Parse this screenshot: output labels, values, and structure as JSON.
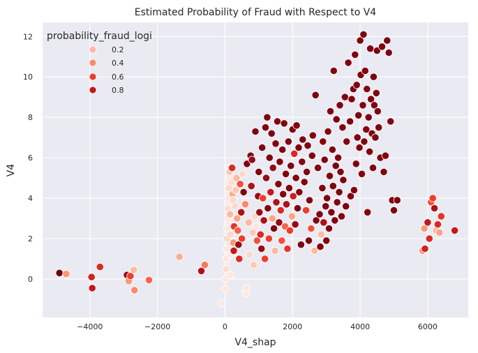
{
  "chart_data": {
    "type": "scatter",
    "title": "Estimated Probability of Fraud with Respect to V4",
    "xlabel": "V4_shap",
    "ylabel": "V4",
    "xlim": [
      -5400,
      7200
    ],
    "ylim": [
      -1.9,
      12.7
    ],
    "xticks": [
      -4000,
      -2000,
      0,
      2000,
      4000,
      6000
    ],
    "xtick_labels": [
      "−4000",
      "−2000",
      "0",
      "2000",
      "4000",
      "6000"
    ],
    "yticks": [
      0,
      2,
      4,
      6,
      8,
      10,
      12
    ],
    "ytick_labels": [
      "0",
      "2",
      "4",
      "6",
      "8",
      "10",
      "12"
    ],
    "grid": true,
    "background": "#eaeaf2",
    "hue": "probability_fraud_logi",
    "legend": {
      "title": "probability_fraud_logi",
      "placement": "top-left",
      "entries": [
        {
          "label": "0.2",
          "color": "#fcbba1"
        },
        {
          "label": "0.4",
          "color": "#fc8a6a"
        },
        {
          "label": "0.6",
          "color": "#ef3c2c"
        },
        {
          "label": "0.8",
          "color": "#c5171c"
        }
      ]
    },
    "colormap": [
      "#fff5f0",
      "#fcbba1",
      "#fc8a6a",
      "#ef3c2c",
      "#c5171c",
      "#67000d"
    ],
    "points": [
      [
        -4900,
        0.3,
        0.98
      ],
      [
        -4700,
        0.25,
        0.35
      ],
      [
        -3950,
        0.1,
        0.75
      ],
      [
        -3930,
        -0.45,
        0.8
      ],
      [
        -3700,
        0.6,
        0.7
      ],
      [
        -2900,
        0.2,
        0.9
      ],
      [
        -2850,
        -0.1,
        0.35
      ],
      [
        -2800,
        0.15,
        0.6
      ],
      [
        -2700,
        0.45,
        0.2
      ],
      [
        -2680,
        -0.55,
        0.4
      ],
      [
        -2250,
        -0.05,
        0.5
      ],
      [
        -1350,
        1.1,
        0.25
      ],
      [
        -700,
        0.4,
        0.85
      ],
      [
        -600,
        0.7,
        0.45
      ],
      [
        -100,
        -1.2,
        0.05
      ],
      [
        0,
        -0.5,
        0.05
      ],
      [
        20,
        0.0,
        0.05
      ],
      [
        30,
        0.5,
        0.08
      ],
      [
        40,
        1.0,
        0.05
      ],
      [
        50,
        1.5,
        0.05
      ],
      [
        60,
        2.0,
        0.1
      ],
      [
        70,
        2.5,
        0.05
      ],
      [
        80,
        3.0,
        0.05
      ],
      [
        90,
        3.5,
        0.08
      ],
      [
        100,
        4.0,
        0.05
      ],
      [
        110,
        4.5,
        0.1
      ],
      [
        120,
        5.0,
        0.05
      ],
      [
        130,
        5.5,
        0.05
      ],
      [
        140,
        5.3,
        0.15
      ],
      [
        150,
        3.2,
        0.2
      ],
      [
        160,
        2.2,
        0.1
      ],
      [
        170,
        1.2,
        0.05
      ],
      [
        180,
        0.2,
        0.05
      ],
      [
        200,
        4.8,
        0.08
      ],
      [
        210,
        5.5,
        0.7
      ],
      [
        220,
        4.2,
        0.25
      ],
      [
        230,
        3.9,
        0.1
      ],
      [
        240,
        2.8,
        0.05
      ],
      [
        250,
        1.8,
        0.35
      ],
      [
        260,
        1.4,
        0.8
      ],
      [
        270,
        2.6,
        0.65
      ],
      [
        300,
        3.6,
        0.1
      ],
      [
        320,
        4.4,
        0.15
      ],
      [
        340,
        5.0,
        0.2
      ],
      [
        360,
        3.0,
        0.3
      ],
      [
        380,
        2.4,
        0.5
      ],
      [
        400,
        1.7,
        0.9
      ],
      [
        420,
        1.0,
        0.7
      ],
      [
        450,
        4.7,
        0.55
      ],
      [
        480,
        3.3,
        0.85
      ],
      [
        500,
        2.0,
        0.6
      ],
      [
        520,
        5.2,
        0.1
      ],
      [
        550,
        4.3,
        0.95
      ],
      [
        600,
        3.7,
        0.4
      ],
      [
        620,
        -0.7,
        0.05
      ],
      [
        640,
        -0.45,
        0.05
      ],
      [
        650,
        5.7,
        0.95
      ],
      [
        700,
        2.8,
        0.2
      ],
      [
        720,
        1.2,
        0.1
      ],
      [
        760,
        6.1,
        0.95
      ],
      [
        780,
        4.6,
        0.85
      ],
      [
        800,
        5.9,
        0.9
      ],
      [
        820,
        2.3,
        0.15
      ],
      [
        850,
        0.7,
        0.15
      ],
      [
        880,
        3.1,
        0.1
      ],
      [
        900,
        7.3,
        0.95
      ],
      [
        920,
        2.6,
        0.05
      ],
      [
        950,
        1.9,
        0.55
      ],
      [
        980,
        4.1,
        0.9
      ],
      [
        1000,
        5.3,
        0.95
      ],
      [
        1020,
        3.3,
        0.9
      ],
      [
        1050,
        2.2,
        0.7
      ],
      [
        1080,
        1.5,
        0.9
      ],
      [
        1100,
        6.5,
        0.95
      ],
      [
        1120,
        4.0,
        0.6
      ],
      [
        1150,
        2.9,
        0.85
      ],
      [
        1180,
        1.0,
        0.6
      ],
      [
        1200,
        7.5,
        0.95
      ],
      [
        1220,
        5.0,
        0.9
      ],
      [
        1250,
        8.0,
        0.95
      ],
      [
        1270,
        3.5,
        0.95
      ],
      [
        1300,
        2.0,
        0.6
      ],
      [
        1320,
        6.0,
        0.95
      ],
      [
        1350,
        4.3,
        0.8
      ],
      [
        1380,
        7.2,
        0.95
      ],
      [
        1400,
        3.0,
        0.3
      ],
      [
        1420,
        5.5,
        0.9
      ],
      [
        1450,
        2.5,
        0.95
      ],
      [
        1480,
        1.4,
        0.2
      ],
      [
        1500,
        6.7,
        0.95
      ],
      [
        1520,
        3.8,
        0.85
      ],
      [
        1550,
        7.8,
        0.95
      ],
      [
        1580,
        4.7,
        0.95
      ],
      [
        1600,
        2.8,
        0.9
      ],
      [
        1620,
        5.8,
        0.95
      ],
      [
        1650,
        3.4,
        0.7
      ],
      [
        1680,
        1.9,
        0.55
      ],
      [
        1700,
        6.4,
        0.95
      ],
      [
        1720,
        4.2,
        0.95
      ],
      [
        1750,
        7.7,
        0.95
      ],
      [
        1780,
        2.6,
        0.5
      ],
      [
        1800,
        5.2,
        0.95
      ],
      [
        1820,
        3.7,
        0.85
      ],
      [
        1850,
        1.5,
        0.65
      ],
      [
        1880,
        6.8,
        0.95
      ],
      [
        1900,
        4.5,
        0.95
      ],
      [
        1920,
        2.4,
        0.6
      ],
      [
        1950,
        5.6,
        0.95
      ],
      [
        1980,
        3.1,
        0.3
      ],
      [
        2000,
        7.4,
        0.95
      ],
      [
        2020,
        4.1,
        0.75
      ],
      [
        2050,
        6.2,
        0.7
      ],
      [
        2080,
        2.7,
        0.9
      ],
      [
        2100,
        5.0,
        0.95
      ],
      [
        2120,
        7.6,
        0.95
      ],
      [
        2150,
        3.5,
        0.95
      ],
      [
        2180,
        6.5,
        0.95
      ],
      [
        2200,
        4.3,
        0.95
      ],
      [
        2250,
        1.7,
        0.95
      ],
      [
        2280,
        5.8,
        0.95
      ],
      [
        2300,
        6.9,
        0.95
      ],
      [
        2350,
        4.8,
        0.95
      ],
      [
        2400,
        3.4,
        0.6
      ],
      [
        2420,
        5.3,
        0.95
      ],
      [
        2450,
        6.6,
        0.95
      ],
      [
        2480,
        1.9,
        0.95
      ],
      [
        2500,
        3.9,
        0.95
      ],
      [
        2550,
        2.5,
        0.55
      ],
      [
        2580,
        6.1,
        0.95
      ],
      [
        2600,
        7.1,
        0.95
      ],
      [
        2650,
        1.4,
        0.2
      ],
      [
        2680,
        9.1,
        0.95
      ],
      [
        2700,
        2.9,
        0.95
      ],
      [
        2750,
        5.5,
        0.95
      ],
      [
        2800,
        3.2,
        0.95
      ],
      [
        2820,
        1.6,
        0.95
      ],
      [
        2850,
        2.2,
        0.2
      ],
      [
        2880,
        4.5,
        0.95
      ],
      [
        2900,
        6.8,
        0.95
      ],
      [
        2920,
        2.8,
        0.85
      ],
      [
        2950,
        5.9,
        0.95
      ],
      [
        2980,
        3.6,
        0.95
      ],
      [
        3000,
        1.9,
        0.95
      ],
      [
        3020,
        4.0,
        0.95
      ],
      [
        3050,
        7.3,
        0.95
      ],
      [
        3080,
        2.5,
        0.95
      ],
      [
        3100,
        5.1,
        0.95
      ],
      [
        3120,
        8.3,
        0.95
      ],
      [
        3150,
        3.3,
        0.95
      ],
      [
        3180,
        6.4,
        0.95
      ],
      [
        3200,
        4.6,
        0.95
      ],
      [
        3220,
        10.3,
        0.95
      ],
      [
        3250,
        2.9,
        0.95
      ],
      [
        3280,
        5.6,
        0.95
      ],
      [
        3300,
        7.9,
        0.95
      ],
      [
        3320,
        3.8,
        0.95
      ],
      [
        3350,
        6.0,
        0.95
      ],
      [
        3380,
        4.3,
        0.95
      ],
      [
        3400,
        8.6,
        0.95
      ],
      [
        3420,
        5.3,
        0.95
      ],
      [
        3450,
        3.1,
        0.95
      ],
      [
        3480,
        7.5,
        0.95
      ],
      [
        3500,
        4.9,
        0.95
      ],
      [
        3550,
        9.0,
        0.95
      ],
      [
        3580,
        3.6,
        0.95
      ],
      [
        3600,
        6.8,
        0.95
      ],
      [
        3650,
        10.7,
        0.95
      ],
      [
        3700,
        7.8,
        0.95
      ],
      [
        3720,
        4.1,
        0.95
      ],
      [
        3750,
        8.9,
        0.95
      ],
      [
        3800,
        9.4,
        0.95
      ],
      [
        3820,
        4.4,
        0.95
      ],
      [
        3850,
        11.1,
        0.95
      ],
      [
        3880,
        5.7,
        0.95
      ],
      [
        3900,
        9.6,
        0.95
      ],
      [
        3920,
        7.0,
        0.95
      ],
      [
        3950,
        8.1,
        0.95
      ],
      [
        3980,
        6.5,
        0.95
      ],
      [
        4000,
        11.8,
        0.95
      ],
      [
        4020,
        10.1,
        0.95
      ],
      [
        4050,
        5.2,
        0.95
      ],
      [
        4080,
        8.6,
        0.95
      ],
      [
        4100,
        12.1,
        0.95
      ],
      [
        4120,
        6.8,
        0.95
      ],
      [
        4150,
        10.3,
        0.95
      ],
      [
        4180,
        7.4,
        0.95
      ],
      [
        4200,
        9.4,
        0.95
      ],
      [
        4220,
        3.3,
        0.95
      ],
      [
        4250,
        8.0,
        0.95
      ],
      [
        4280,
        6.3,
        0.95
      ],
      [
        4300,
        11.4,
        0.95
      ],
      [
        4320,
        8.9,
        0.95
      ],
      [
        4350,
        7.2,
        0.95
      ],
      [
        4380,
        5.5,
        0.95
      ],
      [
        4400,
        10.0,
        0.95
      ],
      [
        4420,
        8.6,
        0.95
      ],
      [
        4450,
        7.0,
        0.95
      ],
      [
        4480,
        9.2,
        0.95
      ],
      [
        4500,
        11.3,
        0.95
      ],
      [
        4520,
        8.3,
        0.95
      ],
      [
        4550,
        7.5,
        0.95
      ],
      [
        4600,
        6.0,
        0.95
      ],
      [
        4650,
        11.5,
        0.95
      ],
      [
        4700,
        5.3,
        0.95
      ],
      [
        4750,
        6.1,
        0.95
      ],
      [
        4800,
        11.8,
        0.95
      ],
      [
        4850,
        11.2,
        0.95
      ],
      [
        4900,
        7.8,
        0.95
      ],
      [
        4950,
        3.9,
        0.95
      ],
      [
        5000,
        3.4,
        0.95
      ],
      [
        5100,
        3.9,
        0.95
      ],
      [
        5850,
        1.4,
        0.35
      ],
      [
        5900,
        2.5,
        0.35
      ],
      [
        5920,
        1.5,
        0.75
      ],
      [
        6000,
        2.8,
        0.8
      ],
      [
        6050,
        2.0,
        0.7
      ],
      [
        6100,
        3.8,
        0.55
      ],
      [
        6150,
        4.0,
        0.6
      ],
      [
        6200,
        3.5,
        0.85
      ],
      [
        6250,
        2.4,
        0.2
      ],
      [
        6300,
        2.7,
        0.7
      ],
      [
        6350,
        2.3,
        0.3
      ],
      [
        6400,
        3.1,
        0.65
      ],
      [
        6800,
        2.4,
        0.8
      ]
    ]
  }
}
